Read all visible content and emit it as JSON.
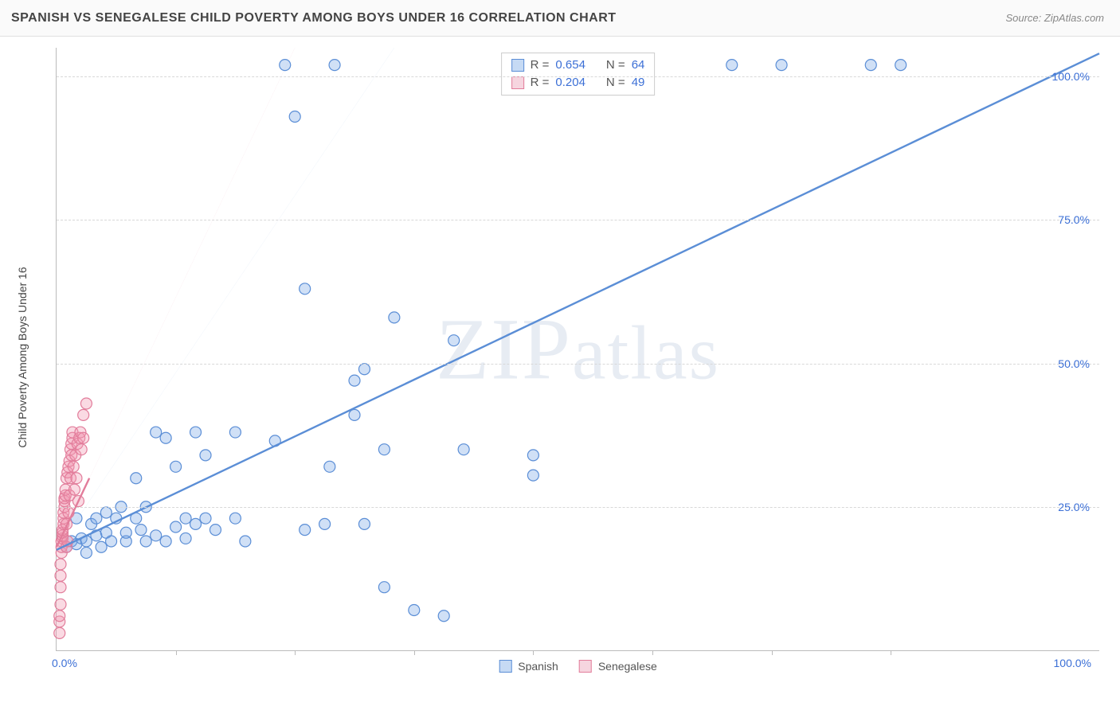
{
  "header": {
    "title": "SPANISH VS SENEGALESE CHILD POVERTY AMONG BOYS UNDER 16 CORRELATION CHART",
    "source": "Source: ZipAtlas.com"
  },
  "chart": {
    "type": "scatter",
    "ylabel": "Child Poverty Among Boys Under 16",
    "ylim": [
      0,
      105
    ],
    "xlim": [
      0,
      105
    ],
    "ytick_labels": [
      "25.0%",
      "50.0%",
      "75.0%",
      "100.0%"
    ],
    "ytick_values": [
      25,
      50,
      75,
      100
    ],
    "xtick_label_left": "0.0%",
    "xtick_label_right": "100.0%",
    "xtick_positions": [
      12,
      24,
      36,
      48,
      60,
      72,
      84
    ],
    "grid_color": "#d8d8d8",
    "background_color": "#ffffff",
    "axis_color": "#bbbbbb",
    "tick_label_color": "#3b6fd6",
    "marker_radius": 7,
    "marker_stroke_width": 1.2,
    "trend_line_width": 2.4,
    "trend_dash_width": 1.4,
    "watermark": "ZIPatlas",
    "series": [
      {
        "name": "Spanish",
        "fill": "rgba(120,165,230,0.35)",
        "stroke": "#5b8ed6",
        "swatch_fill": "#c6daf4",
        "swatch_border": "#5b8ed6",
        "r_value": "0.654",
        "n_value": "64",
        "trend": {
          "x1": 0,
          "y1": 17.5,
          "x2": 105,
          "y2": 104
        },
        "trend_dashed": {
          "x1": 0,
          "y1": 17.5,
          "x2": 34,
          "y2": 105
        },
        "points": [
          [
            1,
            18
          ],
          [
            1.5,
            19
          ],
          [
            2,
            23
          ],
          [
            2,
            18.5
          ],
          [
            2.5,
            19.5
          ],
          [
            3,
            19
          ],
          [
            3,
            17
          ],
          [
            3.5,
            22
          ],
          [
            4,
            20
          ],
          [
            4,
            23
          ],
          [
            4.5,
            18
          ],
          [
            5,
            24
          ],
          [
            5,
            20.5
          ],
          [
            5.5,
            19
          ],
          [
            6,
            23
          ],
          [
            6.5,
            25
          ],
          [
            7,
            19
          ],
          [
            7,
            20.5
          ],
          [
            8,
            30
          ],
          [
            8,
            23
          ],
          [
            8.5,
            21
          ],
          [
            9,
            25
          ],
          [
            9,
            19
          ],
          [
            10,
            20
          ],
          [
            10,
            38
          ],
          [
            11,
            37
          ],
          [
            11,
            19
          ],
          [
            12,
            32
          ],
          [
            12,
            21.5
          ],
          [
            13,
            23
          ],
          [
            13,
            19.5
          ],
          [
            14,
            38
          ],
          [
            14,
            22
          ],
          [
            15,
            23
          ],
          [
            15,
            34
          ],
          [
            16,
            21
          ],
          [
            18,
            23
          ],
          [
            18,
            38
          ],
          [
            19,
            19
          ],
          [
            22,
            36.5
          ],
          [
            23,
            102
          ],
          [
            24,
            93
          ],
          [
            25,
            63
          ],
          [
            25,
            21
          ],
          [
            27,
            22
          ],
          [
            27.5,
            32
          ],
          [
            28,
            102
          ],
          [
            30,
            41
          ],
          [
            30,
            47
          ],
          [
            31,
            49
          ],
          [
            31,
            22
          ],
          [
            33,
            11
          ],
          [
            33,
            35
          ],
          [
            34,
            58
          ],
          [
            36,
            7
          ],
          [
            39,
            6
          ],
          [
            40,
            54
          ],
          [
            41,
            35
          ],
          [
            48,
            34
          ],
          [
            48,
            30.5
          ],
          [
            68,
            102
          ],
          [
            73,
            102
          ],
          [
            82,
            102
          ],
          [
            85,
            102
          ]
        ]
      },
      {
        "name": "Senegalese",
        "fill": "rgba(240,150,175,0.35)",
        "stroke": "#e27d9b",
        "swatch_fill": "#f6d5df",
        "swatch_border": "#e27d9b",
        "r_value": "0.204",
        "n_value": "49",
        "trend": {
          "x1": 0,
          "y1": 18,
          "x2": 3.3,
          "y2": 30
        },
        "trend_dashed": {
          "x1": 0,
          "y1": 18,
          "x2": 24,
          "y2": 105
        },
        "points": [
          [
            0.3,
            3
          ],
          [
            0.3,
            5
          ],
          [
            0.3,
            6
          ],
          [
            0.4,
            8
          ],
          [
            0.4,
            11
          ],
          [
            0.4,
            13
          ],
          [
            0.4,
            15
          ],
          [
            0.5,
            17
          ],
          [
            0.5,
            18
          ],
          [
            0.5,
            19
          ],
          [
            0.6,
            19.5
          ],
          [
            0.6,
            20
          ],
          [
            0.6,
            20.5
          ],
          [
            0.6,
            21
          ],
          [
            0.7,
            22
          ],
          [
            0.7,
            23
          ],
          [
            0.7,
            24
          ],
          [
            0.8,
            25
          ],
          [
            0.8,
            26
          ],
          [
            0.8,
            26.5
          ],
          [
            0.9,
            27
          ],
          [
            0.9,
            28
          ],
          [
            1.0,
            22
          ],
          [
            1.0,
            18
          ],
          [
            1.0,
            30
          ],
          [
            1.1,
            19
          ],
          [
            1.1,
            31
          ],
          [
            1.2,
            32
          ],
          [
            1.2,
            24
          ],
          [
            1.3,
            33
          ],
          [
            1.3,
            27
          ],
          [
            1.4,
            35
          ],
          [
            1.4,
            30
          ],
          [
            1.5,
            36
          ],
          [
            1.5,
            34
          ],
          [
            1.6,
            37
          ],
          [
            1.6,
            38
          ],
          [
            1.7,
            32
          ],
          [
            1.8,
            28
          ],
          [
            1.9,
            34
          ],
          [
            2.0,
            30
          ],
          [
            2.1,
            36
          ],
          [
            2.2,
            26
          ],
          [
            2.3,
            37
          ],
          [
            2.4,
            38
          ],
          [
            2.5,
            35
          ],
          [
            2.7,
            41
          ],
          [
            2.7,
            37
          ],
          [
            3.0,
            43
          ]
        ]
      }
    ],
    "legend": {
      "r_label": "R =",
      "n_label": "N ="
    },
    "bottom_legend": {
      "items": [
        "Spanish",
        "Senegalese"
      ]
    }
  }
}
